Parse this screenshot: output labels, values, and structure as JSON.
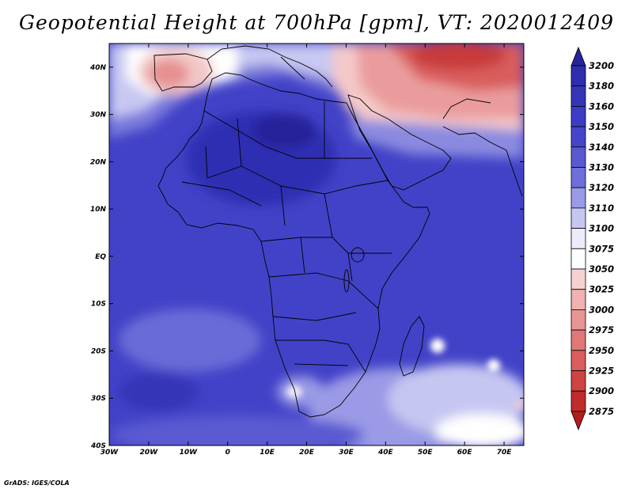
{
  "title": "Geopotential Height at 700hPa [gpm], VT: 2020012409",
  "credit": "GrADS: IGES/COLA",
  "map": {
    "variable": "Geopotential Height",
    "level": "700hPa",
    "units": "gpm",
    "valid_time": "2020012409",
    "lat_labels": [
      "40N",
      "30N",
      "20N",
      "10N",
      "EQ",
      "10S",
      "20S",
      "30S",
      "40S"
    ],
    "lon_labels": [
      "30W",
      "20W",
      "10W",
      "0",
      "10E",
      "20E",
      "30E",
      "40E",
      "50E",
      "60E",
      "70E"
    ],
    "lat_range": [
      -40,
      45
    ],
    "lon_range": [
      -30,
      75
    ]
  },
  "colorbar": {
    "levels": [
      "3200",
      "3180",
      "3160",
      "3150",
      "3140",
      "3130",
      "3120",
      "3110",
      "3100",
      "3075",
      "3050",
      "3025",
      "3000",
      "2975",
      "2950",
      "2925",
      "2900",
      "2875"
    ],
    "colors": [
      "#25249a",
      "#2d2dae",
      "#3535b8",
      "#3c3cc6",
      "#4545cc",
      "#5959d2",
      "#6f6fda",
      "#9a9ae6",
      "#c6c6f2",
      "#ecebfb",
      "#ffffff",
      "#f6d1d1",
      "#efb1b1",
      "#e89595",
      "#e07878",
      "#d95d5d",
      "#cf4343",
      "#c02b2b",
      "#b01d1d"
    ]
  }
}
